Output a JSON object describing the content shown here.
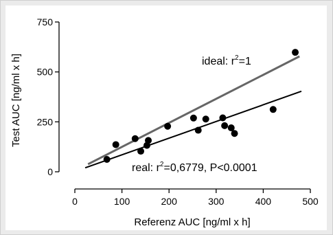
{
  "chart_data": {
    "type": "scatter",
    "title": "",
    "xlabel": "Referenz AUC [ng/ml x h]",
    "ylabel": "Test AUC [ng/ml x h]",
    "xlim": [
      0,
      500
    ],
    "ylim": [
      0,
      750
    ],
    "xticks": [
      0,
      100,
      200,
      300,
      400,
      500
    ],
    "yticks": [
      0,
      250,
      500,
      750
    ],
    "grid": false,
    "points": [
      {
        "x": 68,
        "y": 62
      },
      {
        "x": 87,
        "y": 136
      },
      {
        "x": 128,
        "y": 166
      },
      {
        "x": 140,
        "y": 103
      },
      {
        "x": 153,
        "y": 132
      },
      {
        "x": 156,
        "y": 157
      },
      {
        "x": 197,
        "y": 228
      },
      {
        "x": 252,
        "y": 269
      },
      {
        "x": 262,
        "y": 208
      },
      {
        "x": 278,
        "y": 264
      },
      {
        "x": 314,
        "y": 270
      },
      {
        "x": 318,
        "y": 231
      },
      {
        "x": 332,
        "y": 220
      },
      {
        "x": 339,
        "y": 192
      },
      {
        "x": 421,
        "y": 312
      },
      {
        "x": 468,
        "y": 598
      }
    ],
    "lines": [
      {
        "name": "ideal",
        "color": "#666666",
        "x": [
          28,
          477
        ],
        "y": [
          38,
          578
        ]
      },
      {
        "name": "real",
        "color": "#000000",
        "x": [
          22,
          481
        ],
        "y": [
          20,
          403
        ]
      }
    ],
    "annotations": {
      "ideal": {
        "prefix": "ideal: r",
        "sup": "2",
        "suffix": "=1"
      },
      "real": {
        "prefix": "real: r",
        "sup": "2",
        "suffix": "=0,6779, P<0.0001"
      }
    },
    "colors": {
      "points": "#000000",
      "ideal_line": "#666666",
      "real_line": "#000000",
      "background": "#ebebeb"
    }
  }
}
